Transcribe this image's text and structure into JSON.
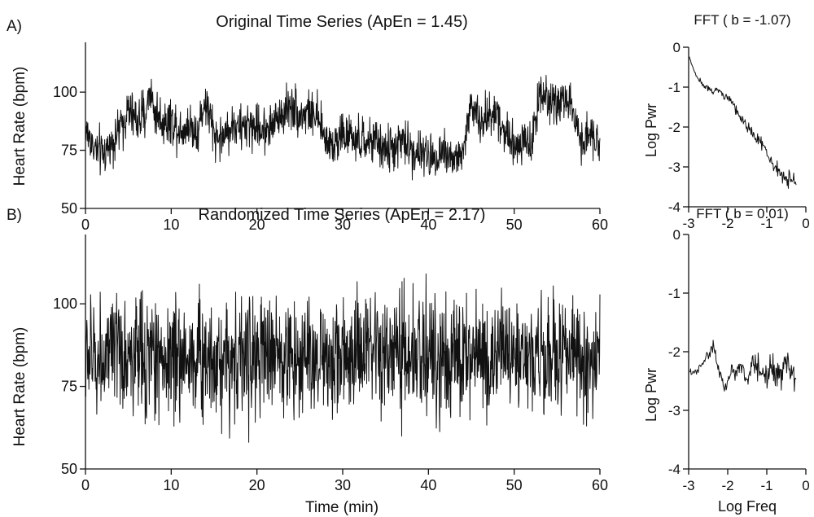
{
  "chart_data": [
    {
      "id": "A_time",
      "type": "line",
      "panel_label": "A)",
      "title": "Original Time Series (ApEn = 1.45)",
      "xlabel": "",
      "ylabel": "Heart Rate (bpm)",
      "xlim": [
        0,
        60
      ],
      "ylim": [
        50,
        120
      ],
      "xticks": [
        0,
        10,
        20,
        30,
        40,
        50,
        60
      ],
      "yticks": [
        50,
        75,
        100
      ],
      "x_tick_labels": [
        "0",
        "10",
        "20",
        "30",
        "40",
        "50",
        "60"
      ],
      "y_tick_labels": [
        "50",
        "75",
        "100"
      ],
      "grid": false,
      "series": [
        {
          "x": [
            0,
            1,
            2,
            3,
            4,
            5,
            6,
            7,
            7.5,
            8,
            9,
            10,
            11,
            12,
            13,
            14,
            15,
            16,
            17,
            18,
            19,
            20,
            21,
            22,
            23,
            24,
            25,
            26,
            27,
            28,
            29,
            30,
            31,
            32,
            33,
            34,
            35,
            36,
            37,
            38,
            39,
            40,
            41,
            42,
            43,
            44,
            45,
            46,
            47,
            48,
            49,
            50,
            51,
            52,
            53,
            54,
            55,
            56,
            57,
            58,
            59,
            60
          ],
          "y": [
            84,
            76,
            73,
            78,
            84,
            92,
            88,
            90,
            102,
            92,
            87,
            88,
            84,
            86,
            83,
            96,
            82,
            80,
            86,
            84,
            86,
            85,
            84,
            87,
            91,
            95,
            90,
            92,
            88,
            80,
            78,
            82,
            80,
            78,
            79,
            78,
            75,
            76,
            79,
            75,
            74,
            72,
            73,
            75,
            71,
            73,
            96,
            86,
            90,
            92,
            82,
            78,
            80,
            76,
            102,
            96,
            94,
            98,
            88,
            80,
            82,
            80
          ],
          "noise": 7
        }
      ]
    },
    {
      "id": "A_fft",
      "type": "line",
      "title": "FFT ( b = -1.07)",
      "xlabel": "",
      "ylabel": "Log Pwr",
      "xlim": [
        -3,
        0
      ],
      "ylim": [
        -4,
        0
      ],
      "xticks": [
        -3,
        -2,
        -1,
        0
      ],
      "yticks": [
        -4,
        -3,
        -2,
        -1,
        0
      ],
      "x_tick_labels": [
        "-3",
        "-2",
        "-1",
        "0"
      ],
      "y_tick_labels": [
        "-4",
        "-3",
        "-2",
        "-1",
        "0"
      ],
      "grid": false,
      "series": [
        {
          "x": [
            -2.98,
            -2.9,
            -2.8,
            -2.7,
            -2.6,
            -2.5,
            -2.4,
            -2.3,
            -2.2,
            -2.1,
            -2.0,
            -1.9,
            -1.8,
            -1.7,
            -1.6,
            -1.5,
            -1.4,
            -1.3,
            -1.2,
            -1.1,
            -1.0,
            -0.9,
            -0.8,
            -0.7,
            -0.6,
            -0.5,
            -0.4,
            -0.3,
            -0.25
          ],
          "y": [
            -0.25,
            -0.5,
            -0.72,
            -0.85,
            -1.0,
            -1.05,
            -1.12,
            -1.08,
            -1.1,
            -1.25,
            -1.3,
            -1.35,
            -1.55,
            -1.7,
            -1.85,
            -2.0,
            -2.15,
            -2.25,
            -2.35,
            -2.45,
            -2.65,
            -2.85,
            -3.0,
            -3.1,
            -3.25,
            -3.35,
            -3.3,
            -3.4,
            -3.45
          ],
          "noise": 0.12
        }
      ]
    },
    {
      "id": "B_time",
      "type": "line",
      "panel_label": "B)",
      "title": "Randomized Time Series (ApEn = 2.17)",
      "xlabel": "Time (min)",
      "ylabel": "Heart Rate (bpm)",
      "xlim": [
        0,
        60
      ],
      "ylim": [
        50,
        120
      ],
      "xticks": [
        0,
        10,
        20,
        30,
        40,
        50,
        60
      ],
      "yticks": [
        50,
        75,
        100
      ],
      "x_tick_labels": [
        "0",
        "10",
        "20",
        "30",
        "40",
        "50",
        "60"
      ],
      "y_tick_labels": [
        "50",
        "75",
        "100"
      ],
      "grid": false,
      "series": [
        {
          "x": [
            0,
            60
          ],
          "y": [
            84,
            84
          ],
          "noise": 13
        }
      ]
    },
    {
      "id": "B_fft",
      "type": "line",
      "title": "FFT ( b = 0.01)",
      "xlabel": "Log Freq",
      "ylabel": "Log Pwr",
      "xlim": [
        -3,
        0
      ],
      "ylim": [
        -4,
        0
      ],
      "xticks": [
        -3,
        -2,
        -1,
        0
      ],
      "yticks": [
        -4,
        -3,
        -2,
        -1,
        0
      ],
      "x_tick_labels": [
        "-3",
        "-2",
        "-1",
        "0"
      ],
      "y_tick_labels": [
        "-4",
        "-3",
        "-2",
        "-1",
        "0"
      ],
      "grid": false,
      "series": [
        {
          "x": [
            -2.98,
            -2.9,
            -2.8,
            -2.7,
            -2.6,
            -2.5,
            -2.4,
            -2.35,
            -2.3,
            -2.2,
            -2.1,
            -2.0,
            -1.9,
            -1.8,
            -1.7,
            -1.6,
            -1.5,
            -1.4,
            -1.3,
            -1.2,
            -1.1,
            -1.0,
            -0.9,
            -0.8,
            -0.7,
            -0.6,
            -0.5,
            -0.4,
            -0.3,
            -0.25
          ],
          "y": [
            -2.35,
            -2.38,
            -2.33,
            -2.25,
            -2.15,
            -2.05,
            -1.95,
            -1.9,
            -2.1,
            -2.4,
            -2.6,
            -2.5,
            -2.3,
            -2.4,
            -2.2,
            -2.35,
            -2.5,
            -2.3,
            -2.25,
            -2.3,
            -2.35,
            -2.4,
            -2.3,
            -2.25,
            -2.35,
            -2.3,
            -2.28,
            -2.35,
            -2.3,
            -2.4
          ],
          "noise": 0.15
        }
      ]
    }
  ]
}
